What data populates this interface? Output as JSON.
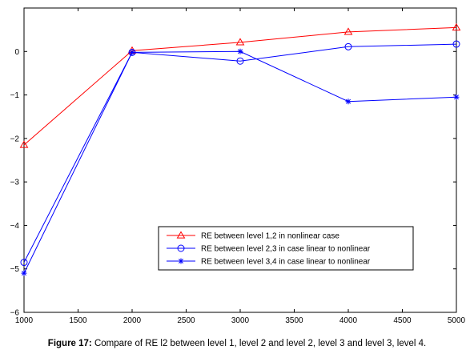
{
  "caption": {
    "label": "Figure 17:",
    "text": " Compare of RE l2 between level 1, level 2 and level 2, level 3 and level 3, level 4."
  },
  "chart_data": {
    "type": "line",
    "x": [
      1000,
      2000,
      3000,
      4000,
      5000
    ],
    "xlim": [
      1000,
      5000
    ],
    "ylim": [
      -6,
      1
    ],
    "xticks": [
      1000,
      1500,
      2000,
      2500,
      3000,
      3500,
      4000,
      4500,
      5000
    ],
    "yticks": [
      -6,
      -5,
      -4,
      -3,
      -2,
      -1,
      0
    ],
    "ytick_labels": [
      "−6",
      "−5",
      "−4",
      "−3",
      "−2",
      "−1",
      "0"
    ],
    "grid": false,
    "legend_position": "lower-right",
    "series": [
      {
        "name": "RE between level 1,2 in nonlinear case",
        "color": "#ff0000",
        "marker": "triangle",
        "values": [
          -2.15,
          0.02,
          0.21,
          0.45,
          0.55
        ]
      },
      {
        "name": "RE between level 2,3 in case linear to nonlinear",
        "color": "#0000ff",
        "marker": "circle",
        "values": [
          -4.85,
          -0.02,
          -0.22,
          0.11,
          0.17
        ]
      },
      {
        "name": "RE between level 3,4 in case linear to nonlinear",
        "color": "#0000ff",
        "marker": "star",
        "values": [
          -5.1,
          -0.02,
          0.0,
          -1.15,
          -1.05
        ]
      }
    ]
  }
}
